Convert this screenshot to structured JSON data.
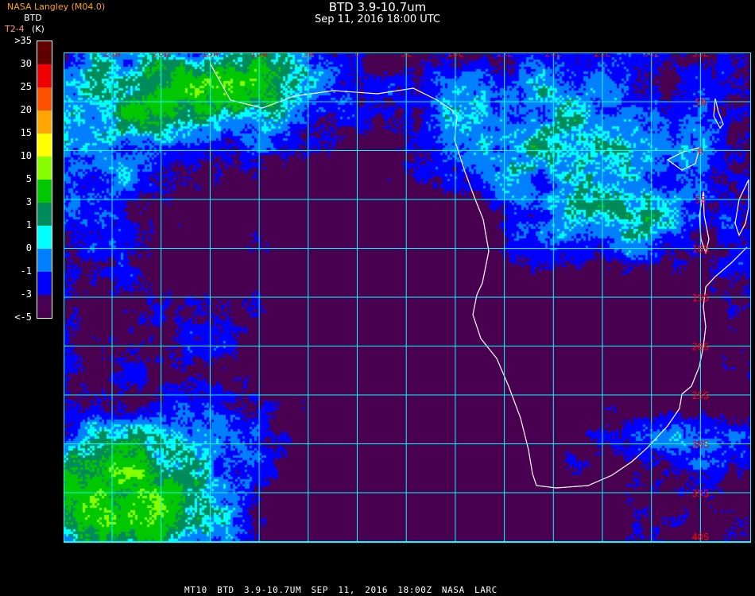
{
  "header": {
    "title": "BTD 3.9-10.7um",
    "subtitle": "Sep 11, 2016 18:00 UTC",
    "credit": "NASA Langley (M04.0)"
  },
  "legend": {
    "title": "BTD",
    "unit_line": "T2-4",
    "unit": "(K)",
    "ticks": [
      ">35",
      "30",
      "25",
      "20",
      "15",
      "10",
      "5",
      "3",
      "1",
      "0",
      "-1",
      "-3",
      "<-5"
    ],
    "colors": [
      "#600000",
      "#f00000",
      "#ff5000",
      "#ffa500",
      "#ffff00",
      "#88ff00",
      "#00c800",
      "#008c5a",
      "#00ffff",
      "#0080ff",
      "#0000ff",
      "#4a0050"
    ]
  },
  "map": {
    "lon_labels": [
      "25W",
      "20W",
      "15W",
      "10W",
      "5W",
      "0",
      "5E",
      "10E",
      "15E",
      "20E",
      "25E",
      "30E",
      "35E"
    ],
    "lat_labels": [
      "5N",
      "0",
      "5S",
      "10S",
      "15S",
      "20S",
      "25S",
      "30S",
      "35S",
      "40S"
    ],
    "grid_color": "#00ffff",
    "label_color": "#ff0000",
    "coast_color": "#ffffff"
  },
  "footer": {
    "text": "MT10  BTD 3.9-10.7UM   SEP 11, 2016 18:00Z   NASA LARC"
  }
}
